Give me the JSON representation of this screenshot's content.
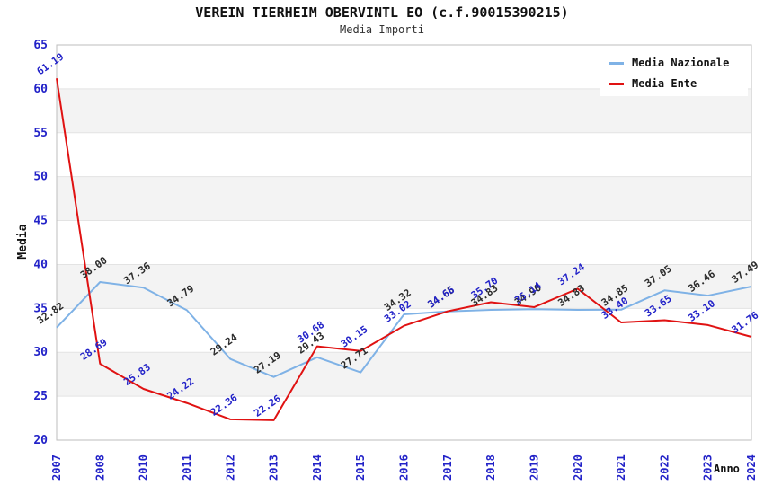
{
  "chart": {
    "title": "VEREIN TIERHEIM OBERVINTL EO (c.f.90015390215)",
    "subtitle": "Media Importi",
    "y_axis_title": "Media",
    "x_axis_title": "Anno"
  },
  "legend": {
    "items": [
      {
        "label": "Media Nazionale",
        "color": "#7fb2e6"
      },
      {
        "label": "Media Ente",
        "color": "#e01212"
      }
    ]
  },
  "chart_data": {
    "type": "line",
    "title": "VEREIN TIERHEIM OBERVINTL EO (c.f.90015390215)",
    "subtitle": "Media Importi",
    "xlabel": "Anno",
    "ylabel": "Media",
    "ylim": [
      20,
      65
    ],
    "ytick_step": 5,
    "yticks": [
      20,
      25,
      30,
      35,
      40,
      45,
      50,
      55,
      60,
      65
    ],
    "grid": "horizontal",
    "alternating_bands": true,
    "legend_position": "top-right",
    "categories": [
      "2007",
      "2008",
      "2010",
      "2011",
      "2012",
      "2013",
      "2014",
      "2015",
      "2016",
      "2017",
      "2018",
      "2019",
      "2020",
      "2021",
      "2022",
      "2023",
      "2024"
    ],
    "series": [
      {
        "name": "Media Nazionale",
        "color": "#7fb2e6",
        "label_color": "#2b2b2b",
        "values": [
          32.82,
          38.0,
          37.36,
          34.79,
          29.24,
          27.19,
          29.43,
          27.71,
          34.32,
          34.65,
          34.83,
          34.9,
          34.83,
          34.85,
          37.05,
          36.46,
          37.49
        ]
      },
      {
        "name": "Media Ente",
        "color": "#e01212",
        "label_color": "#2222c8",
        "values": [
          61.19,
          28.69,
          25.83,
          24.22,
          22.36,
          22.26,
          30.68,
          30.15,
          33.02,
          34.66,
          35.7,
          35.14,
          37.24,
          33.4,
          33.65,
          33.1,
          31.76
        ]
      }
    ]
  },
  "colors": {
    "axis_tick_label": "#2222c8",
    "grid_line": "#e3e3e3",
    "band_fill": "#f3f3f3",
    "plot_border": "#bdbdbd"
  }
}
